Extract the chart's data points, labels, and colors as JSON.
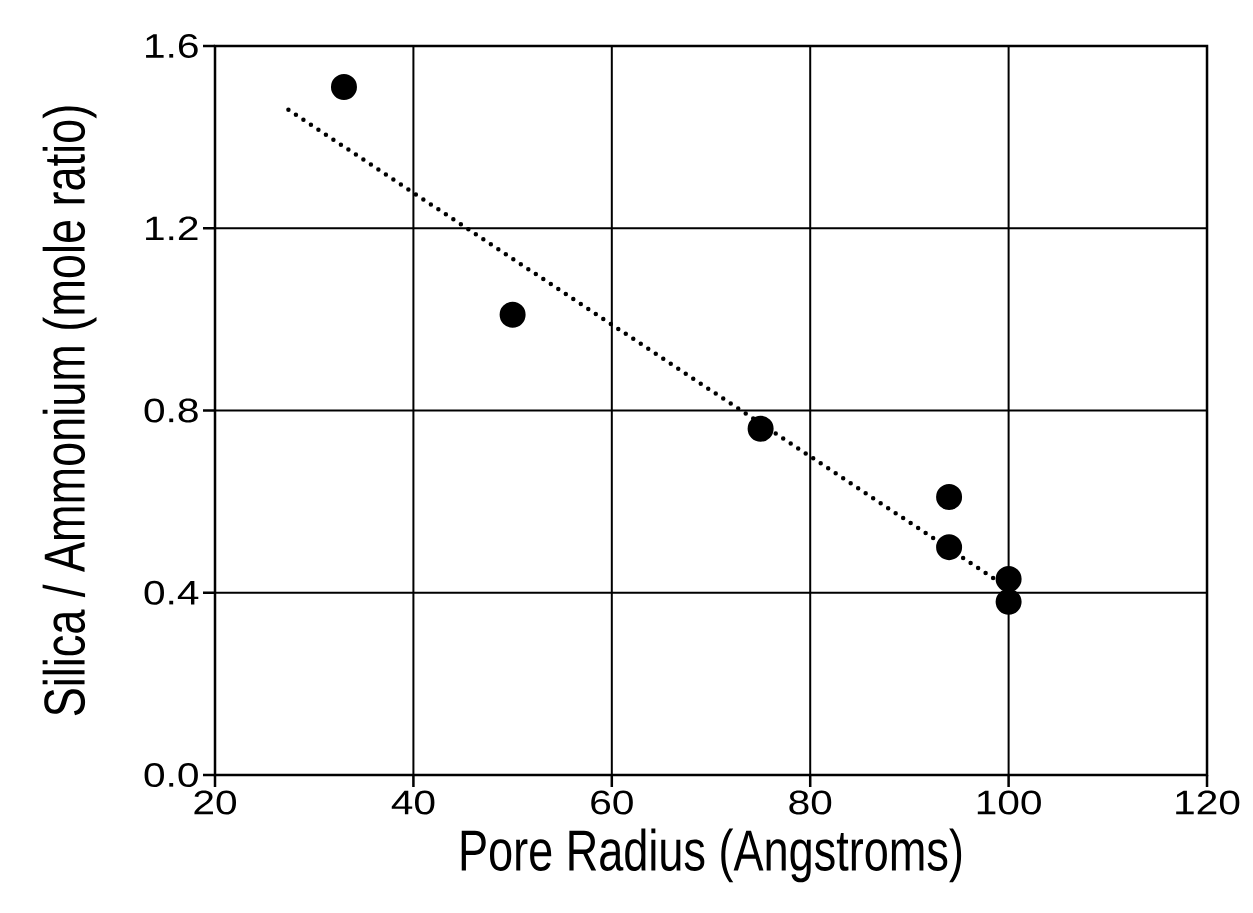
{
  "chart_data": {
    "type": "scatter",
    "xlabel": "Pore Radius (Angstroms)",
    "ylabel": "Silica / Ammonium (mole ratio)",
    "xlim": [
      20,
      120
    ],
    "ylim": [
      0,
      1.6
    ],
    "xticks": [
      20,
      40,
      60,
      80,
      100,
      120
    ],
    "yticks": [
      {
        "value": 0,
        "label": "0.0"
      },
      0.4,
      0.8,
      1.2,
      1.6
    ],
    "grid": true,
    "series": [
      {
        "color": "#000000",
        "marker": "circle",
        "x": [
          33,
          50,
          75,
          94,
          94,
          100,
          100
        ],
        "values": [
          1.51,
          1.01,
          0.76,
          0.61,
          0.5,
          0.43,
          0.38
        ]
      },
      {
        "type": "line",
        "color": "#000000",
        "line_style": "dotted",
        "marker": "none",
        "x": [
          27.4,
          100
        ],
        "values": [
          1.46,
          0.41
        ]
      }
    ]
  }
}
